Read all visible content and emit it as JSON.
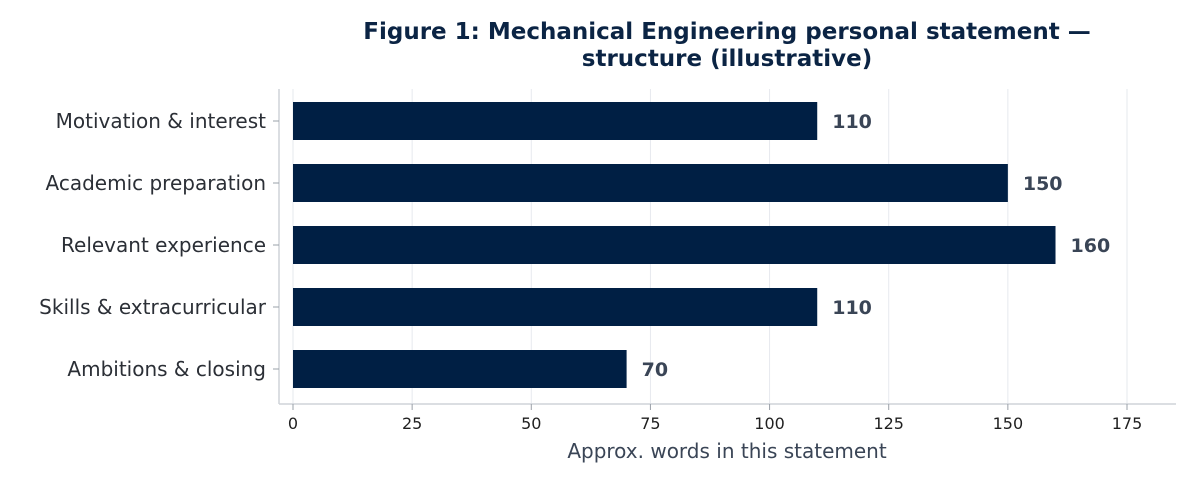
{
  "chart_data": {
    "type": "bar",
    "orientation": "horizontal",
    "title": "Figure 1: Mechanical Engineering personal statement — structure (illustrative)",
    "title_lines": [
      "Figure 1: Mechanical Engineering personal statement —",
      "structure (illustrative)"
    ],
    "categories": [
      "Motivation & interest",
      "Academic preparation",
      "Relevant experience",
      "Skills & extracurricular",
      "Ambitions & closing"
    ],
    "values": [
      110,
      150,
      160,
      110,
      70
    ],
    "value_labels": [
      "110",
      "150",
      "160",
      "110",
      "70"
    ],
    "xlabel": "Approx. words in this statement",
    "ylabel": "",
    "xlim": [
      0,
      185
    ],
    "xticks": [
      0,
      25,
      50,
      75,
      100,
      125,
      150,
      175
    ],
    "xtick_labels": [
      "0",
      "25",
      "50",
      "75",
      "100",
      "125",
      "150",
      "175"
    ],
    "grid": true,
    "legend": "none",
    "colors": {
      "bar": "#001f44",
      "title": "#0b2444",
      "value_label": "#3a4556",
      "grid": "#e6e9ee",
      "axis": "#cfd3d9"
    }
  }
}
